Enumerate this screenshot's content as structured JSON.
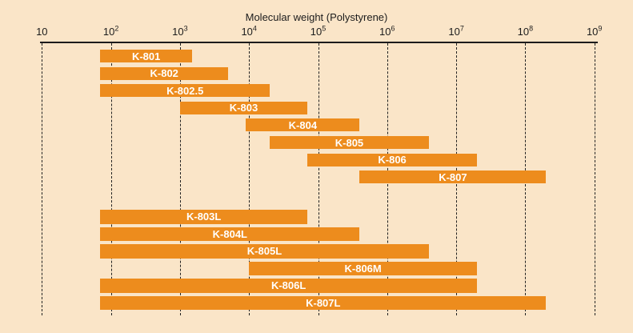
{
  "page": {
    "background_color": "#fae5c8",
    "bar_color": "#ed8c1d",
    "axis_color": "#1c1c1c",
    "bar_label_color": "#ffffff"
  },
  "chart_data": {
    "type": "bar",
    "orientation": "horizontal-range",
    "title": "Molecular weight (Polystyrene)",
    "x_axis": {
      "scale": "log10",
      "min": 10,
      "max": 1000000000,
      "tick_exponents": [
        1,
        2,
        3,
        4,
        5,
        6,
        7,
        8,
        9
      ],
      "tick_labels": [
        "10",
        "10^2",
        "10^3",
        "10^4",
        "10^5",
        "10^6",
        "10^7",
        "10^8",
        "10^9"
      ],
      "grid": "dashed-vertical-per-decade"
    },
    "legend": "none",
    "bars": [
      {
        "label": "K-801",
        "mw_min": 70,
        "mw_max": 1500,
        "group": 1
      },
      {
        "label": "K-802",
        "mw_min": 70,
        "mw_max": 5000,
        "group": 1
      },
      {
        "label": "K-802.5",
        "mw_min": 70,
        "mw_max": 20000,
        "group": 1
      },
      {
        "label": "K-803",
        "mw_min": 1000,
        "mw_max": 70000,
        "group": 1
      },
      {
        "label": "K-804",
        "mw_min": 9000,
        "mw_max": 400000,
        "group": 1
      },
      {
        "label": "K-805",
        "mw_min": 20000,
        "mw_max": 4000000,
        "group": 1
      },
      {
        "label": "K-806",
        "mw_min": 70000,
        "mw_max": 20000000,
        "group": 1
      },
      {
        "label": "K-807",
        "mw_min": 400000,
        "mw_max": 200000000,
        "group": 1
      },
      {
        "label": "K-803L",
        "mw_min": 70,
        "mw_max": 70000,
        "group": 2
      },
      {
        "label": "K-804L",
        "mw_min": 70,
        "mw_max": 400000,
        "group": 2
      },
      {
        "label": "K-805L",
        "mw_min": 70,
        "mw_max": 4000000,
        "group": 2
      },
      {
        "label": "K-806M",
        "mw_min": 10000,
        "mw_max": 20000000,
        "group": 2
      },
      {
        "label": "K-806L",
        "mw_min": 70,
        "mw_max": 20000000,
        "group": 2
      },
      {
        "label": "K-807L",
        "mw_min": 70,
        "mw_max": 200000000,
        "group": 2
      }
    ]
  }
}
